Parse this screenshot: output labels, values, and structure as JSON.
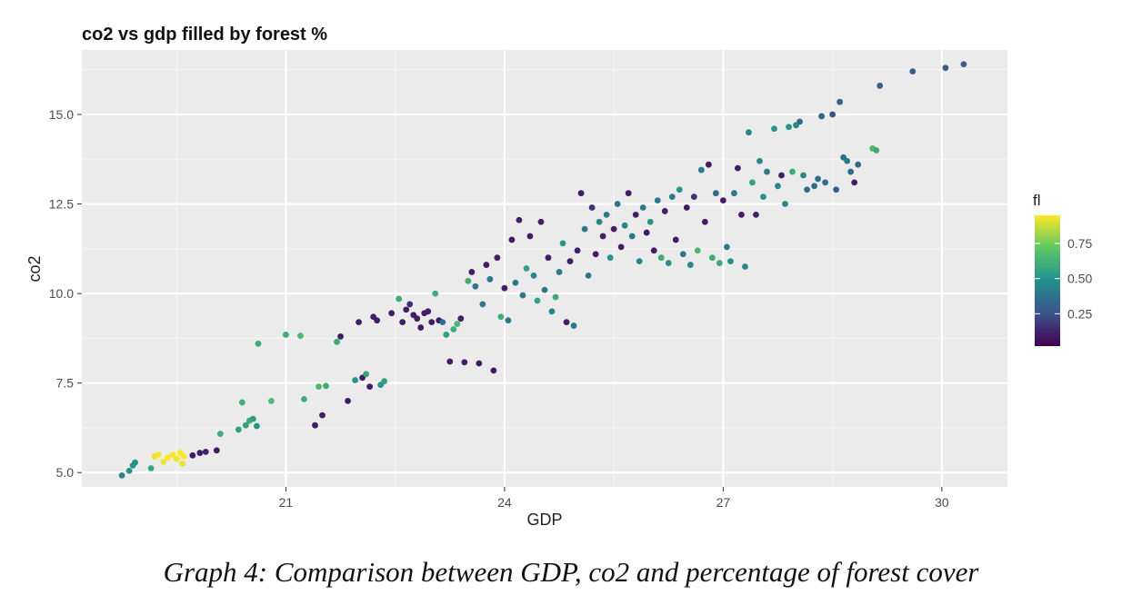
{
  "caption": "Graph 4: Comparison between GDP, co2 and percentage of forest cover",
  "chart_data": {
    "type": "scatter",
    "title": "co2 vs gdp filled by forest %",
    "xlabel": "GDP",
    "ylabel": "co2",
    "xlim": [
      18.2,
      30.9
    ],
    "ylim": [
      4.6,
      16.8
    ],
    "x_ticks": [
      "21",
      "24",
      "27",
      "30"
    ],
    "y_ticks": [
      "5.0",
      "7.5",
      "10.0",
      "12.5",
      "15.0"
    ],
    "grid": true,
    "legend": {
      "title": "fl",
      "type": "colorbar",
      "position": "right",
      "ticks": [
        "0.25",
        "0.50",
        "0.75"
      ],
      "range": [
        0.02,
        0.95
      ]
    },
    "colors": {
      "panel": "#ebebeb",
      "grid": "#ffffff",
      "viridis": [
        "#440154",
        "#3b528b",
        "#21908c",
        "#5dc863",
        "#fde725"
      ]
    },
    "points": [
      [
        18.75,
        4.92,
        0.45
      ],
      [
        18.85,
        5.05,
        0.5
      ],
      [
        18.9,
        5.2,
        0.5
      ],
      [
        18.93,
        5.28,
        0.48
      ],
      [
        19.15,
        5.12,
        0.58
      ],
      [
        19.2,
        5.45,
        0.93
      ],
      [
        19.25,
        5.5,
        0.95
      ],
      [
        19.32,
        5.3,
        0.92
      ],
      [
        19.38,
        5.42,
        0.95
      ],
      [
        19.45,
        5.5,
        0.95
      ],
      [
        19.5,
        5.38,
        0.93
      ],
      [
        19.55,
        5.55,
        0.95
      ],
      [
        19.58,
        5.25,
        0.92
      ],
      [
        19.6,
        5.45,
        0.95
      ],
      [
        19.72,
        5.48,
        0.1
      ],
      [
        19.82,
        5.55,
        0.1
      ],
      [
        19.9,
        5.58,
        0.12
      ],
      [
        20.05,
        5.62,
        0.1
      ],
      [
        20.1,
        6.08,
        0.6
      ],
      [
        20.35,
        6.2,
        0.55
      ],
      [
        20.4,
        6.96,
        0.62
      ],
      [
        20.45,
        6.32,
        0.55
      ],
      [
        20.5,
        6.45,
        0.6
      ],
      [
        20.55,
        6.5,
        0.55
      ],
      [
        20.6,
        6.3,
        0.5
      ],
      [
        20.62,
        8.6,
        0.6
      ],
      [
        20.8,
        7.0,
        0.65
      ],
      [
        21.0,
        8.85,
        0.6
      ],
      [
        21.2,
        8.82,
        0.65
      ],
      [
        21.25,
        7.05,
        0.6
      ],
      [
        21.4,
        6.32,
        0.1
      ],
      [
        21.5,
        6.6,
        0.1
      ],
      [
        21.45,
        7.4,
        0.65
      ],
      [
        21.55,
        7.42,
        0.6
      ],
      [
        21.7,
        8.65,
        0.6
      ],
      [
        21.75,
        8.8,
        0.1
      ],
      [
        21.85,
        7.0,
        0.1
      ],
      [
        21.95,
        7.58,
        0.5
      ],
      [
        22.0,
        9.2,
        0.1
      ],
      [
        22.05,
        7.65,
        0.1
      ],
      [
        22.1,
        7.75,
        0.55
      ],
      [
        22.15,
        7.4,
        0.1
      ],
      [
        22.2,
        9.35,
        0.1
      ],
      [
        22.25,
        9.25,
        0.1
      ],
      [
        22.3,
        7.45,
        0.5
      ],
      [
        22.35,
        7.55,
        0.55
      ],
      [
        22.45,
        9.45,
        0.1
      ],
      [
        22.55,
        9.85,
        0.6
      ],
      [
        22.6,
        9.2,
        0.1
      ],
      [
        22.65,
        9.55,
        0.1
      ],
      [
        22.7,
        9.7,
        0.15
      ],
      [
        22.75,
        9.4,
        0.1
      ],
      [
        22.8,
        9.3,
        0.1
      ],
      [
        22.85,
        9.05,
        0.1
      ],
      [
        22.9,
        9.45,
        0.1
      ],
      [
        22.95,
        9.5,
        0.1
      ],
      [
        23.0,
        9.2,
        0.1
      ],
      [
        23.05,
        10.0,
        0.6
      ],
      [
        23.1,
        9.25,
        0.1
      ],
      [
        23.15,
        9.2,
        0.35
      ],
      [
        23.2,
        8.85,
        0.55
      ],
      [
        23.25,
        8.1,
        0.1
      ],
      [
        23.3,
        9.0,
        0.6
      ],
      [
        23.35,
        9.15,
        0.65
      ],
      [
        23.4,
        9.3,
        0.1
      ],
      [
        23.45,
        8.08,
        0.1
      ],
      [
        23.5,
        10.35,
        0.6
      ],
      [
        23.55,
        10.6,
        0.1
      ],
      [
        23.6,
        10.2,
        0.4
      ],
      [
        23.65,
        8.05,
        0.1
      ],
      [
        23.7,
        9.7,
        0.4
      ],
      [
        23.75,
        10.8,
        0.1
      ],
      [
        23.8,
        10.4,
        0.4
      ],
      [
        23.85,
        7.85,
        0.1
      ],
      [
        23.9,
        11.0,
        0.1
      ],
      [
        23.95,
        9.35,
        0.6
      ],
      [
        24.0,
        10.15,
        0.1
      ],
      [
        24.05,
        9.25,
        0.4
      ],
      [
        24.1,
        11.5,
        0.1
      ],
      [
        24.15,
        10.3,
        0.4
      ],
      [
        24.2,
        12.05,
        0.1
      ],
      [
        24.25,
        9.95,
        0.4
      ],
      [
        24.3,
        10.7,
        0.55
      ],
      [
        24.35,
        11.6,
        0.1
      ],
      [
        24.4,
        10.5,
        0.45
      ],
      [
        24.45,
        9.8,
        0.55
      ],
      [
        24.5,
        12.0,
        0.1
      ],
      [
        24.55,
        10.1,
        0.4
      ],
      [
        24.6,
        11.0,
        0.1
      ],
      [
        24.65,
        9.5,
        0.45
      ],
      [
        24.7,
        9.9,
        0.6
      ],
      [
        24.75,
        10.6,
        0.4
      ],
      [
        24.8,
        11.4,
        0.5
      ],
      [
        24.85,
        9.2,
        0.1
      ],
      [
        24.9,
        10.9,
        0.1
      ],
      [
        24.95,
        9.1,
        0.4
      ],
      [
        25.0,
        11.2,
        0.1
      ],
      [
        25.05,
        12.8,
        0.1
      ],
      [
        25.1,
        11.8,
        0.4
      ],
      [
        25.15,
        10.5,
        0.4
      ],
      [
        25.2,
        12.4,
        0.15
      ],
      [
        25.25,
        11.1,
        0.1
      ],
      [
        25.3,
        12.0,
        0.45
      ],
      [
        25.35,
        11.6,
        0.1
      ],
      [
        25.4,
        12.2,
        0.4
      ],
      [
        25.45,
        11.0,
        0.5
      ],
      [
        25.5,
        11.8,
        0.1
      ],
      [
        25.55,
        12.5,
        0.4
      ],
      [
        25.6,
        11.3,
        0.1
      ],
      [
        25.65,
        11.9,
        0.45
      ],
      [
        25.7,
        12.8,
        0.1
      ],
      [
        25.75,
        11.6,
        0.4
      ],
      [
        25.8,
        12.2,
        0.1
      ],
      [
        25.85,
        10.9,
        0.45
      ],
      [
        25.9,
        12.4,
        0.4
      ],
      [
        25.95,
        11.7,
        0.1
      ],
      [
        26.0,
        12.0,
        0.5
      ],
      [
        26.05,
        11.2,
        0.1
      ],
      [
        26.1,
        12.6,
        0.4
      ],
      [
        26.15,
        11.0,
        0.6
      ],
      [
        26.2,
        12.3,
        0.1
      ],
      [
        26.25,
        10.85,
        0.5
      ],
      [
        26.3,
        12.7,
        0.4
      ],
      [
        26.35,
        11.5,
        0.1
      ],
      [
        26.4,
        12.9,
        0.5
      ],
      [
        26.45,
        11.1,
        0.4
      ],
      [
        26.5,
        12.4,
        0.1
      ],
      [
        26.55,
        10.8,
        0.45
      ],
      [
        26.6,
        12.7,
        0.15
      ],
      [
        26.65,
        11.2,
        0.65
      ],
      [
        26.7,
        13.45,
        0.4
      ],
      [
        26.75,
        12.0,
        0.1
      ],
      [
        26.8,
        13.6,
        0.1
      ],
      [
        26.85,
        11.0,
        0.6
      ],
      [
        26.9,
        12.8,
        0.35
      ],
      [
        26.95,
        10.85,
        0.6
      ],
      [
        27.0,
        12.6,
        0.1
      ],
      [
        27.05,
        11.3,
        0.4
      ],
      [
        27.1,
        10.9,
        0.5
      ],
      [
        27.15,
        12.8,
        0.4
      ],
      [
        27.2,
        13.5,
        0.1
      ],
      [
        27.25,
        12.2,
        0.1
      ],
      [
        27.3,
        10.75,
        0.45
      ],
      [
        27.35,
        14.5,
        0.45
      ],
      [
        27.4,
        13.1,
        0.55
      ],
      [
        27.45,
        12.2,
        0.1
      ],
      [
        27.5,
        13.7,
        0.45
      ],
      [
        27.55,
        12.7,
        0.5
      ],
      [
        27.6,
        13.4,
        0.4
      ],
      [
        27.7,
        14.6,
        0.5
      ],
      [
        27.75,
        13.0,
        0.45
      ],
      [
        27.8,
        13.3,
        0.1
      ],
      [
        27.85,
        12.5,
        0.45
      ],
      [
        27.9,
        14.65,
        0.5
      ],
      [
        27.95,
        13.4,
        0.6
      ],
      [
        28.0,
        14.7,
        0.45
      ],
      [
        28.05,
        14.8,
        0.35
      ],
      [
        28.1,
        13.3,
        0.45
      ],
      [
        28.15,
        12.9,
        0.35
      ],
      [
        28.25,
        13.0,
        0.35
      ],
      [
        28.3,
        13.2,
        0.35
      ],
      [
        28.35,
        14.95,
        0.3
      ],
      [
        28.4,
        13.1,
        0.35
      ],
      [
        28.5,
        15.0,
        0.25
      ],
      [
        28.55,
        12.9,
        0.3
      ],
      [
        28.6,
        15.35,
        0.3
      ],
      [
        28.65,
        13.8,
        0.35
      ],
      [
        28.7,
        13.7,
        0.4
      ],
      [
        28.75,
        13.4,
        0.35
      ],
      [
        28.8,
        13.1,
        0.1
      ],
      [
        28.85,
        13.6,
        0.35
      ],
      [
        29.05,
        14.05,
        0.65
      ],
      [
        29.1,
        14.0,
        0.6
      ],
      [
        29.15,
        15.8,
        0.3
      ],
      [
        29.6,
        16.2,
        0.3
      ],
      [
        30.05,
        16.3,
        0.3
      ],
      [
        30.3,
        16.4,
        0.3
      ]
    ]
  }
}
